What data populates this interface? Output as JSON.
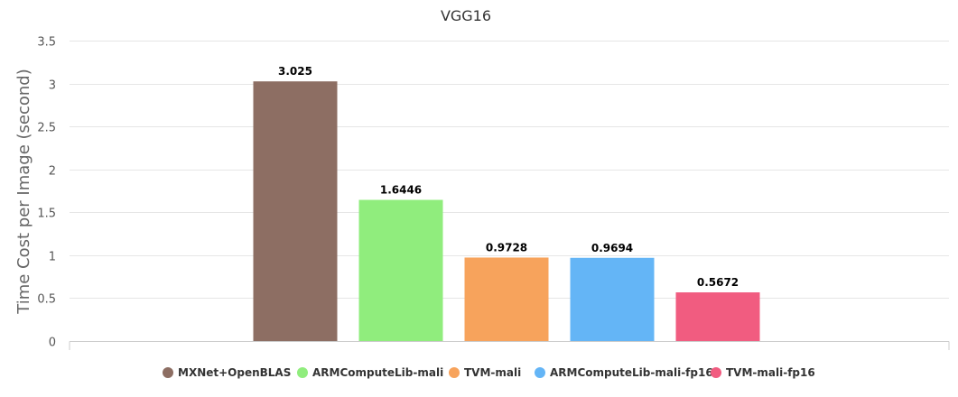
{
  "chart_data": {
    "type": "bar",
    "title": "VGG16",
    "ylabel": "Time Cost per Image (second)",
    "xlabel": "",
    "ylim": [
      0,
      3.5
    ],
    "yticks": [
      "0",
      "0.5",
      "1",
      "1.5",
      "2",
      "2.5",
      "3",
      "3.5"
    ],
    "grid": true,
    "legend_position": "bottom",
    "series": [
      {
        "name": "MXNet+OpenBLAS",
        "value": 3.025,
        "label": "3.025",
        "color": "#8d6e63"
      },
      {
        "name": "ARMComputeLib-mali",
        "value": 1.6446,
        "label": "1.6446",
        "color": "#90ed7d"
      },
      {
        "name": "TVM-mali",
        "value": 0.9728,
        "label": "0.9728",
        "color": "#f7a35c"
      },
      {
        "name": "ARMComputeLib-mali-fp16",
        "value": 0.9694,
        "label": "0.9694",
        "color": "#64b5f6"
      },
      {
        "name": "TVM-mali-fp16",
        "value": 0.5672,
        "label": "0.5672",
        "color": "#f15c80"
      }
    ]
  }
}
